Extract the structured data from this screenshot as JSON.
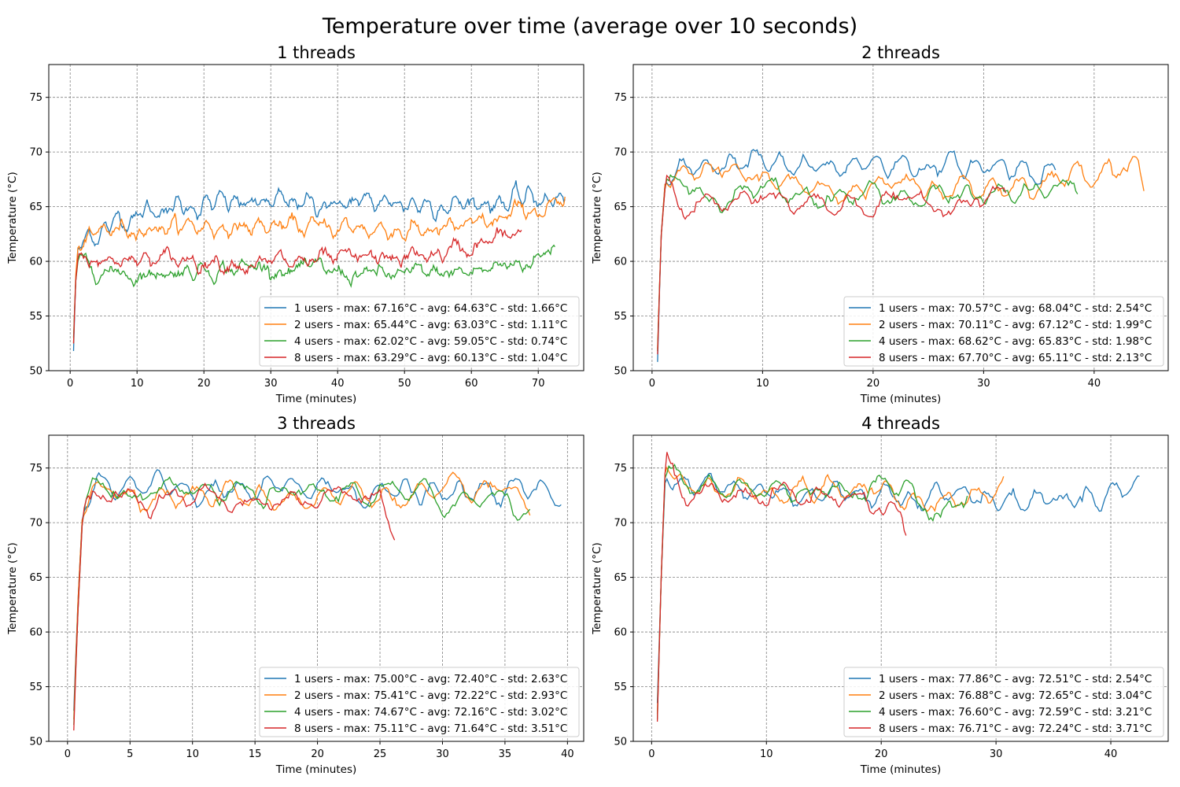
{
  "suptitle": "Temperature over time (average over 10 seconds)",
  "colors": [
    "#1f77b4",
    "#ff7f0e",
    "#2ca02c",
    "#d62728"
  ],
  "chart_data": [
    {
      "type": "line",
      "title": "1 threads",
      "xlabel": "Time (minutes)",
      "ylabel": "Temperature (°C)",
      "xlim": [
        -3.2,
        76.8
      ],
      "ylim": [
        50,
        78
      ],
      "xticks": [
        0,
        10,
        20,
        30,
        40,
        50,
        60,
        70
      ],
      "yticks": [
        50,
        55,
        60,
        65,
        70,
        75
      ],
      "grid": true,
      "legend_position": "lower right",
      "series": [
        {
          "name": "1 users - max: 67.16°C - avg: 64.63°C - std: 1.66°C",
          "duration": 74,
          "max": 67.16,
          "avg": 64.63,
          "std": 1.66,
          "trend": [
            [
              0.5,
              51.8
            ],
            [
              0.8,
              58
            ],
            [
              1.2,
              61.5
            ],
            [
              5,
              63
            ],
            [
              10,
              64.5
            ],
            [
              20,
              65.2
            ],
            [
              40,
              65.3
            ],
            [
              60,
              65.3
            ],
            [
              70,
              65.8
            ],
            [
              74,
              65.5
            ]
          ]
        },
        {
          "name": "2 users - max: 65.44°C - avg: 63.03°C - std: 1.11°C",
          "duration": 74,
          "max": 65.44,
          "avg": 63.03,
          "std": 1.11,
          "trend": [
            [
              0.5,
              52.5
            ],
            [
              0.8,
              58.5
            ],
            [
              1.2,
              61.5
            ],
            [
              5,
              62.7
            ],
            [
              10,
              63.2
            ],
            [
              20,
              63.2
            ],
            [
              40,
              63.1
            ],
            [
              55,
              62.8
            ],
            [
              62,
              63.2
            ],
            [
              68,
              64.6
            ],
            [
              74,
              65
            ]
          ]
        },
        {
          "name": "4 users - max: 62.02°C - avg: 59.05°C - std: 0.74°C",
          "duration": 72.5,
          "max": 62.02,
          "avg": 59.05,
          "std": 0.74,
          "trend": [
            [
              0.5,
              53
            ],
            [
              0.8,
              58
            ],
            [
              1.2,
              60.2
            ],
            [
              5,
              59.3
            ],
            [
              10,
              58.8
            ],
            [
              20,
              59.4
            ],
            [
              30,
              59.5
            ],
            [
              40,
              58.9
            ],
            [
              50,
              58.7
            ],
            [
              60,
              59
            ],
            [
              66,
              59.7
            ],
            [
              70,
              60.3
            ],
            [
              72.5,
              61.5
            ]
          ]
        },
        {
          "name": "8 users - max: 63.29°C - avg: 60.13°C - std: 1.04°C",
          "duration": 67.5,
          "max": 63.29,
          "avg": 60.13,
          "std": 1.04,
          "trend": [
            [
              0.5,
              52.5
            ],
            [
              0.8,
              58
            ],
            [
              1.2,
              60.5
            ],
            [
              5,
              60.4
            ],
            [
              10,
              60
            ],
            [
              20,
              60.2
            ],
            [
              30,
              59.8
            ],
            [
              40,
              60
            ],
            [
              50,
              60.3
            ],
            [
              55,
              60.6
            ],
            [
              60,
              61.3
            ],
            [
              65,
              62.3
            ],
            [
              67.5,
              62.6
            ]
          ]
        }
      ]
    },
    {
      "type": "line",
      "title": "2 threads",
      "xlabel": "Time (minutes)",
      "ylabel": "Temperature (°C)",
      "xlim": [
        -1.7,
        46.7
      ],
      "ylim": [
        50,
        78
      ],
      "xticks": [
        0,
        10,
        20,
        30,
        40
      ],
      "yticks": [
        50,
        55,
        60,
        65,
        70,
        75
      ],
      "grid": true,
      "legend_position": "lower right",
      "series": [
        {
          "name": "1 users - max: 70.57°C - avg: 68.04°C - std: 2.54°C",
          "duration": 36.5,
          "max": 70.57,
          "avg": 68.04,
          "std": 2.54,
          "trend": [
            [
              0.5,
              50.8
            ],
            [
              0.8,
              62
            ],
            [
              1.2,
              67.5
            ],
            [
              3,
              68
            ],
            [
              6,
              69
            ],
            [
              9,
              69.3
            ],
            [
              12,
              68.5
            ],
            [
              16,
              68.3
            ],
            [
              20,
              69.3
            ],
            [
              24,
              68.8
            ],
            [
              28,
              68.6
            ],
            [
              32,
              68.7
            ],
            [
              36.5,
              68.5
            ]
          ]
        },
        {
          "name": "2 users - max: 70.11°C - avg: 67.12°C - std: 1.99°C",
          "duration": 44.5,
          "max": 70.11,
          "avg": 67.12,
          "std": 1.99,
          "trend": [
            [
              0.5,
              52
            ],
            [
              0.8,
              62
            ],
            [
              1.2,
              67.5
            ],
            [
              3,
              68.3
            ],
            [
              6,
              68.2
            ],
            [
              10,
              67.2
            ],
            [
              15,
              67
            ],
            [
              20,
              66.8
            ],
            [
              25,
              66.6
            ],
            [
              30,
              66.8
            ],
            [
              36,
              67.4
            ],
            [
              40,
              68.5
            ],
            [
              44,
              69.2
            ],
            [
              44.5,
              67
            ]
          ]
        },
        {
          "name": "4 users - max: 68.62°C - avg: 65.83°C - std: 1.98°C",
          "duration": 38.5,
          "max": 68.62,
          "avg": 65.83,
          "std": 1.98,
          "trend": [
            [
              0.5,
              51.8
            ],
            [
              0.8,
              62
            ],
            [
              1.2,
              67
            ],
            [
              3,
              66.5
            ],
            [
              6,
              66
            ],
            [
              10,
              66.4
            ],
            [
              15,
              66
            ],
            [
              20,
              66.2
            ],
            [
              25,
              65.8
            ],
            [
              30,
              66
            ],
            [
              34,
              66.3
            ],
            [
              38.5,
              66.6
            ]
          ]
        },
        {
          "name": "8 users - max: 67.70°C - avg: 65.11°C - std: 2.13°C",
          "duration": 32,
          "max": 67.7,
          "avg": 65.11,
          "std": 2.13,
          "trend": [
            [
              0.5,
              51.5
            ],
            [
              0.8,
              62
            ],
            [
              1.2,
              67
            ],
            [
              3,
              65
            ],
            [
              6,
              65.2
            ],
            [
              10,
              65.5
            ],
            [
              15,
              65.2
            ],
            [
              20,
              65.4
            ],
            [
              25,
              65.2
            ],
            [
              30,
              65.8
            ],
            [
              32,
              66.2
            ]
          ]
        }
      ]
    },
    {
      "type": "line",
      "title": "3 threads",
      "xlabel": "Time (minutes)",
      "ylabel": "Temperature (°C)",
      "xlim": [
        -1.5,
        41.3
      ],
      "ylim": [
        50,
        78
      ],
      "xticks": [
        0,
        5,
        10,
        15,
        20,
        25,
        30,
        35,
        40
      ],
      "yticks": [
        50,
        55,
        60,
        65,
        70,
        75
      ],
      "grid": true,
      "legend_position": "lower right",
      "series": [
        {
          "name": "1 users - max: 75.00°C - avg: 72.40°C - std: 2.63°C",
          "duration": 39.5,
          "max": 75.0,
          "avg": 72.4,
          "std": 2.63,
          "trend": [
            [
              0.5,
              52.8
            ],
            [
              0.8,
              62
            ],
            [
              1.2,
              71
            ],
            [
              2,
              73
            ],
            [
              5,
              73
            ],
            [
              10,
              72.8
            ],
            [
              15,
              72.7
            ],
            [
              20,
              73.2
            ],
            [
              25,
              73
            ],
            [
              30,
              72.3
            ],
            [
              35,
              73
            ],
            [
              39.5,
              72.5
            ]
          ]
        },
        {
          "name": "2 users - max: 75.41°C - avg: 72.22°C - std: 2.93°C",
          "duration": 37,
          "max": 75.41,
          "avg": 72.22,
          "std": 2.93,
          "trend": [
            [
              0.5,
              52
            ],
            [
              0.8,
              62
            ],
            [
              1.2,
              71
            ],
            [
              2,
              73.5
            ],
            [
              5,
              72.8
            ],
            [
              10,
              72.5
            ],
            [
              15,
              72.5
            ],
            [
              20,
              72.3
            ],
            [
              25,
              72.8
            ],
            [
              30,
              72.2
            ],
            [
              35,
              73
            ],
            [
              37,
              71.5
            ]
          ]
        },
        {
          "name": "4 users - max: 74.67°C - avg: 72.16°C - std: 3.02°C",
          "duration": 37,
          "max": 74.67,
          "avg": 72.16,
          "std": 3.02,
          "trend": [
            [
              0.5,
              51.5
            ],
            [
              0.8,
              61
            ],
            [
              1.2,
              70.5
            ],
            [
              2,
              73
            ],
            [
              5,
              72.3
            ],
            [
              10,
              72.5
            ],
            [
              15,
              72.5
            ],
            [
              20,
              72.5
            ],
            [
              25,
              73
            ],
            [
              30,
              71.8
            ],
            [
              35,
              72.8
            ],
            [
              37,
              71
            ]
          ]
        },
        {
          "name": "8 users - max: 75.11°C - avg: 71.64°C - std: 3.51°C",
          "duration": 26.2,
          "max": 75.11,
          "avg": 71.64,
          "std": 3.51,
          "trend": [
            [
              0.5,
              51
            ],
            [
              0.8,
              61
            ],
            [
              1.2,
              70.5
            ],
            [
              2,
              72.5
            ],
            [
              5,
              72.3
            ],
            [
              10,
              72.3
            ],
            [
              15,
              72
            ],
            [
              20,
              72
            ],
            [
              25,
              73
            ],
            [
              26.2,
              69.5
            ]
          ]
        }
      ]
    },
    {
      "type": "line",
      "title": "4 threads",
      "xlabel": "Time (minutes)",
      "ylabel": "Temperature (°C)",
      "xlim": [
        -1.6,
        45
      ],
      "ylim": [
        50,
        78
      ],
      "xticks": [
        0,
        10,
        20,
        30,
        40
      ],
      "yticks": [
        50,
        55,
        60,
        65,
        70,
        75
      ],
      "grid": true,
      "legend_position": "lower right",
      "series": [
        {
          "name": "1 users - max: 77.86°C - avg: 72.51°C - std: 2.54°C",
          "duration": 42.5,
          "max": 77.86,
          "avg": 72.51,
          "std": 2.54,
          "trend": [
            [
              0.5,
              53.5
            ],
            [
              0.8,
              64
            ],
            [
              1.2,
              74.5
            ],
            [
              3,
              73.5
            ],
            [
              7,
              73
            ],
            [
              12,
              72.8
            ],
            [
              17,
              72.6
            ],
            [
              22,
              72.8
            ],
            [
              27,
              72.6
            ],
            [
              32,
              72
            ],
            [
              37,
              72.3
            ],
            [
              42.5,
              73.5
            ]
          ]
        },
        {
          "name": "2 users - max: 76.88°C - avg: 72.65°C - std: 3.04°C",
          "duration": 30.8,
          "max": 76.88,
          "avg": 72.65,
          "std": 3.04,
          "trend": [
            [
              0.5,
              52.5
            ],
            [
              0.8,
              64
            ],
            [
              1.2,
              75.5
            ],
            [
              3,
              73.5
            ],
            [
              7,
              73
            ],
            [
              12,
              73.2
            ],
            [
              17,
              73
            ],
            [
              22,
              72.6
            ],
            [
              27,
              72
            ],
            [
              30.8,
              73
            ]
          ]
        },
        {
          "name": "4 users - max: 76.60°C - avg: 72.59°C - std: 3.21°C",
          "duration": 27.5,
          "max": 76.6,
          "avg": 72.59,
          "std": 3.21,
          "trend": [
            [
              0.5,
              52
            ],
            [
              0.8,
              64
            ],
            [
              1.2,
              75
            ],
            [
              3,
              73.3
            ],
            [
              7,
              73
            ],
            [
              12,
              73
            ],
            [
              17,
              73
            ],
            [
              22,
              73.2
            ],
            [
              25,
              71
            ],
            [
              27.5,
              72.5
            ]
          ]
        },
        {
          "name": "8 users - max: 76.71°C - avg: 72.24°C - std: 3.71°C",
          "duration": 22.2,
          "max": 76.71,
          "avg": 72.24,
          "std": 3.71,
          "trend": [
            [
              0.5,
              51.8
            ],
            [
              0.8,
              64
            ],
            [
              1.2,
              75.5
            ],
            [
              3,
              72.5
            ],
            [
              7,
              72.8
            ],
            [
              12,
              72.5
            ],
            [
              17,
              72.3
            ],
            [
              21,
              71.5
            ],
            [
              22.2,
              69
            ]
          ]
        }
      ]
    }
  ]
}
